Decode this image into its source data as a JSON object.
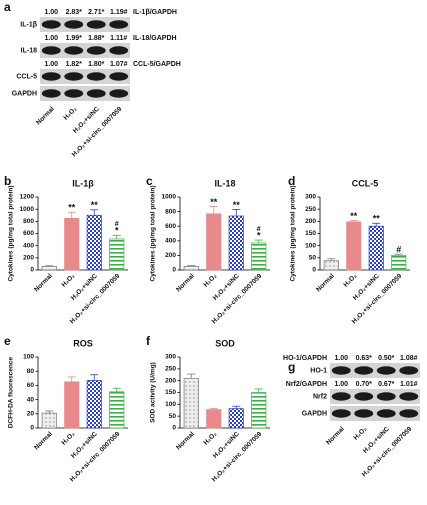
{
  "chart_data": [
    {
      "type": "bar",
      "label": "b",
      "title": "IL-1β",
      "y_label": "Cytokines (pg/mg total protein)",
      "categories": [
        "Normal",
        "H₂O₂",
        "H₂O₂+siNC",
        "H₂O₂+si-circ_0007059"
      ],
      "values": [
        60,
        850,
        900,
        510
      ],
      "errors": [
        10,
        100,
        90,
        60
      ],
      "sig": [
        null,
        "**",
        "**",
        "*"
      ],
      "sig_top": [
        null,
        null,
        null,
        "#"
      ],
      "colors": [
        "#cfcfcf",
        "#e8898b",
        "#2b3fc4",
        "#3fae4a"
      ],
      "ylim": [
        0,
        1200
      ],
      "yticks": [
        0,
        200,
        400,
        600,
        800,
        1000,
        1200
      ]
    },
    {
      "type": "bar",
      "label": "c",
      "title": "IL-18",
      "y_label": "Cytokines (pg/mg total protein)",
      "categories": [
        "Normal",
        "H₂O₂",
        "H₂O₂+siNC",
        "H₂O₂+si-circ_0007059"
      ],
      "values": [
        50,
        770,
        740,
        370
      ],
      "errors": [
        10,
        100,
        90,
        40
      ],
      "sig": [
        null,
        "**",
        "**",
        "*"
      ],
      "sig_top": [
        null,
        null,
        null,
        "#"
      ],
      "colors": [
        "#cfcfcf",
        "#e8898b",
        "#2b3fc4",
        "#3fae4a"
      ],
      "ylim": [
        0,
        1000
      ],
      "yticks": [
        0,
        200,
        400,
        600,
        800,
        1000
      ]
    },
    {
      "type": "bar",
      "label": "d",
      "title": "CCL-5",
      "y_label": "Cytokines (pg/mg total protein)",
      "categories": [
        "Normal",
        "H₂O₂",
        "H₂O₂+siNC",
        "H₂O₂+si-circ_0007059"
      ],
      "values": [
        38,
        198,
        180,
        60
      ],
      "errors": [
        8,
        5,
        12,
        5
      ],
      "sig": [
        null,
        "**",
        "**",
        "#"
      ],
      "sig_top": [
        null,
        null,
        null,
        null
      ],
      "colors": [
        "#cfcfcf",
        "#e8898b",
        "#2b3fc4",
        "#3fae4a"
      ],
      "ylim": [
        0,
        300
      ],
      "yticks": [
        0,
        50,
        100,
        150,
        200,
        250,
        300
      ]
    },
    {
      "type": "bar",
      "label": "e",
      "title": "ROS",
      "y_label": "DCFH-DA fluorescence",
      "categories": [
        "Normal",
        "H₂O₂",
        "H₂O₂+siNC",
        "H₂O₂+si-circ_0007059"
      ],
      "values": [
        21,
        65,
        67,
        51
      ],
      "errors": [
        3,
        7,
        8,
        5
      ],
      "sig": [
        null,
        null,
        null,
        null
      ],
      "sig_top": [
        null,
        null,
        null,
        null
      ],
      "colors": [
        "#cfcfcf",
        "#e8898b",
        "#2b3fc4",
        "#3fae4a"
      ],
      "ylim": [
        0,
        100
      ],
      "yticks": [
        0,
        20,
        40,
        60,
        80,
        100
      ]
    },
    {
      "type": "bar",
      "label": "f",
      "title": "SOD",
      "y_label": "SOD activity (U/mg)",
      "categories": [
        "Normal",
        "H₂O₂",
        "H₂O₂+siNC",
        "H₂O₂+si-circ_0007059"
      ],
      "values": [
        210,
        78,
        82,
        150
      ],
      "errors": [
        18,
        5,
        10,
        15
      ],
      "sig": [
        null,
        null,
        null,
        null
      ],
      "sig_top": [
        null,
        null,
        null,
        null
      ],
      "colors": [
        "#cfcfcf",
        "#e8898b",
        "#2b3fc4",
        "#3fae4a"
      ],
      "ylim": [
        0,
        300
      ],
      "yticks": [
        0,
        50,
        100,
        150,
        200,
        250,
        300
      ]
    }
  ],
  "blots": [
    {
      "label": "a",
      "categories": [
        "Normal",
        "H₂O₂",
        "H₂O₂+siNC",
        "H₂O₂+si-circ_0007059"
      ],
      "rows": [
        {
          "name": "IL-1β",
          "ratio_name": "IL-1β/GAPDH",
          "ratios": [
            "1.00",
            "2.83*",
            "2.71*",
            "1.19#"
          ]
        },
        {
          "name": "IL-18",
          "ratio_name": "IL-18/GAPDH",
          "ratios": [
            "1.00",
            "1.99*",
            "1.88*",
            "1.11#"
          ]
        },
        {
          "name": "CCL-5",
          "ratio_name": "CCL-5/GAPDH",
          "ratios": [
            "1.00",
            "1.82*",
            "1.80*",
            "1.07#"
          ]
        },
        {
          "name": "GAPDH"
        }
      ]
    },
    {
      "label": "g",
      "categories": [
        "Normal",
        "H₂O₂",
        "H₂O₂+siNC",
        "H₂O₂+si-circ_0007059"
      ],
      "rows": [
        {
          "name": "HO-1",
          "ratio_name": "HO-1/GAPDH",
          "ratios": [
            "1.00",
            "0.63*",
            "0.50*",
            "1.08#"
          ]
        },
        {
          "name": "Nrf2",
          "ratio_name": "Nrf2/GAPDH",
          "ratios": [
            "1.00",
            "0.70*",
            "0.67*",
            "1.01#"
          ]
        },
        {
          "name": "GAPDH"
        }
      ]
    }
  ]
}
